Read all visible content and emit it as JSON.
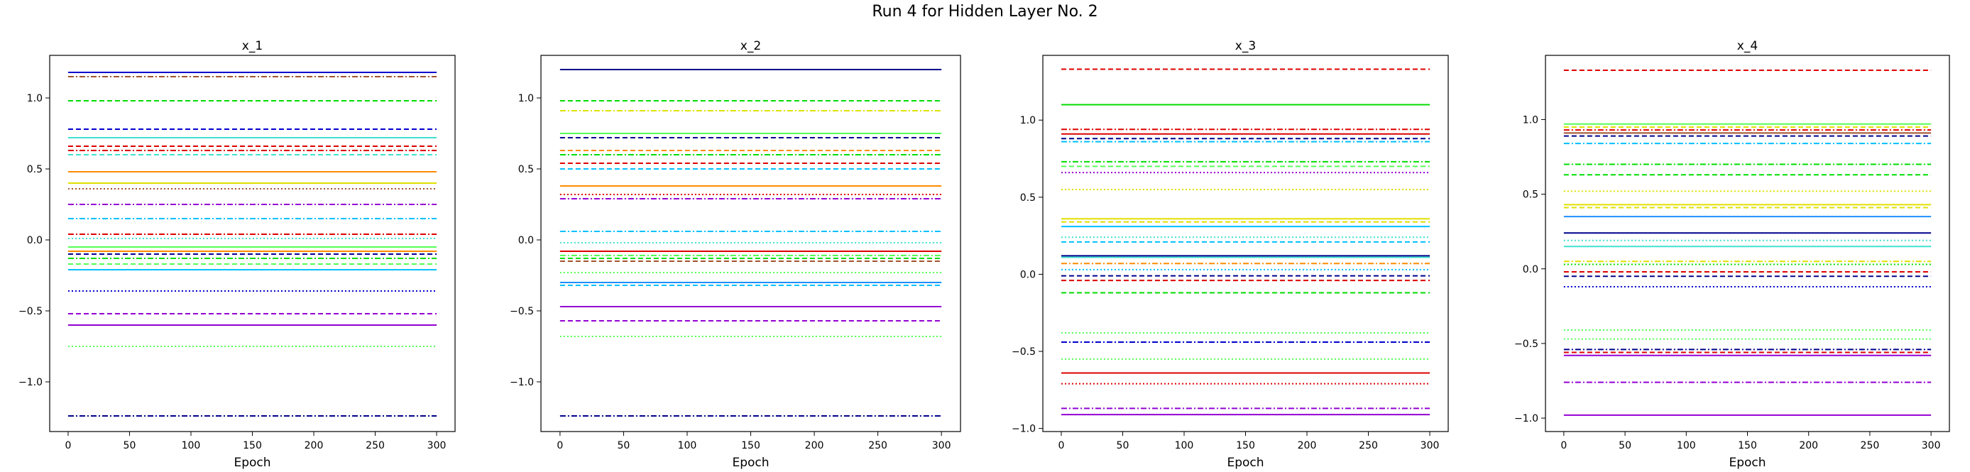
{
  "figure": {
    "title": "Run 4 for Hidden Layer No. 2"
  },
  "palette": {
    "blue": "#0000cd",
    "navy": "#00008b",
    "orange": "#ff8c00",
    "green": "#00dd00",
    "lime": "#55ff55",
    "yellow": "#e0e000",
    "cyan": "#00bfff",
    "turquoise": "#40e0d0",
    "red": "#dd0000",
    "purple": "#9400d3",
    "brown": "#a0522d",
    "dodger": "#1e90ff"
  },
  "chart_data": [
    {
      "type": "line",
      "title": "x_1",
      "xlabel": "Epoch",
      "ylabel": "",
      "xlim": [
        -15,
        315
      ],
      "ylim": [
        -1.35,
        1.3
      ],
      "xticks": [
        0,
        50,
        100,
        150,
        200,
        250,
        300
      ],
      "yticks": [
        -1.0,
        -0.5,
        0.0,
        0.5,
        1.0
      ],
      "ytick_labels": [
        "−1.0",
        "−0.5",
        "0.0",
        "0.5",
        "1.0"
      ],
      "x_range": [
        0,
        300
      ],
      "series": [
        {
          "y": 1.18,
          "color": "blue",
          "style": "solid"
        },
        {
          "y": 1.15,
          "color": "brown",
          "style": "dashdot"
        },
        {
          "y": 0.98,
          "color": "green",
          "style": "dashed"
        },
        {
          "y": 0.78,
          "color": "blue",
          "style": "dashed"
        },
        {
          "y": 0.72,
          "color": "turquoise",
          "style": "solid"
        },
        {
          "y": 0.66,
          "color": "red",
          "style": "dashed"
        },
        {
          "y": 0.63,
          "color": "red",
          "style": "dashdot"
        },
        {
          "y": 0.6,
          "color": "turquoise",
          "style": "dashed"
        },
        {
          "y": 0.48,
          "color": "orange",
          "style": "solid"
        },
        {
          "y": 0.4,
          "color": "yellow",
          "style": "solid"
        },
        {
          "y": 0.36,
          "color": "brown",
          "style": "dotted"
        },
        {
          "y": 0.25,
          "color": "purple",
          "style": "dashdot"
        },
        {
          "y": 0.15,
          "color": "cyan",
          "style": "dashdot"
        },
        {
          "y": 0.04,
          "color": "red",
          "style": "dashdot"
        },
        {
          "y": 0.01,
          "color": "turquoise",
          "style": "dotted"
        },
        {
          "y": -0.05,
          "color": "lime",
          "style": "solid"
        },
        {
          "y": -0.08,
          "color": "orange",
          "style": "solid"
        },
        {
          "y": -0.1,
          "color": "navy",
          "style": "dashed"
        },
        {
          "y": -0.13,
          "color": "green",
          "style": "dashdot"
        },
        {
          "y": -0.17,
          "color": "lime",
          "style": "dashed"
        },
        {
          "y": -0.21,
          "color": "cyan",
          "style": "solid"
        },
        {
          "y": -0.36,
          "color": "blue",
          "style": "dotted"
        },
        {
          "y": -0.52,
          "color": "purple",
          "style": "dashed"
        },
        {
          "y": -0.6,
          "color": "purple",
          "style": "solid"
        },
        {
          "y": -0.75,
          "color": "lime",
          "style": "dotted"
        },
        {
          "y": -1.24,
          "color": "navy",
          "style": "dashdot"
        }
      ]
    },
    {
      "type": "line",
      "title": "x_2",
      "xlabel": "Epoch",
      "ylabel": "",
      "xlim": [
        -15,
        315
      ],
      "ylim": [
        -1.35,
        1.3
      ],
      "xticks": [
        0,
        50,
        100,
        150,
        200,
        250,
        300
      ],
      "yticks": [
        -1.0,
        -0.5,
        0.0,
        0.5,
        1.0
      ],
      "ytick_labels": [
        "−1.0",
        "−0.5",
        "0.0",
        "0.5",
        "1.0"
      ],
      "x_range": [
        0,
        300
      ],
      "series": [
        {
          "y": 1.2,
          "color": "navy",
          "style": "solid"
        },
        {
          "y": 0.98,
          "color": "green",
          "style": "dashed"
        },
        {
          "y": 0.91,
          "color": "yellow",
          "style": "dashdot"
        },
        {
          "y": 0.75,
          "color": "lime",
          "style": "solid"
        },
        {
          "y": 0.72,
          "color": "navy",
          "style": "dashed"
        },
        {
          "y": 0.63,
          "color": "orange",
          "style": "dashed"
        },
        {
          "y": 0.6,
          "color": "green",
          "style": "dashdot"
        },
        {
          "y": 0.54,
          "color": "red",
          "style": "dashed"
        },
        {
          "y": 0.5,
          "color": "cyan",
          "style": "dashed"
        },
        {
          "y": 0.38,
          "color": "orange",
          "style": "solid"
        },
        {
          "y": 0.32,
          "color": "red",
          "style": "dotted"
        },
        {
          "y": 0.29,
          "color": "purple",
          "style": "dashdot"
        },
        {
          "y": 0.06,
          "color": "cyan",
          "style": "dashdot"
        },
        {
          "y": -0.02,
          "color": "turquoise",
          "style": "dotted"
        },
        {
          "y": -0.08,
          "color": "red",
          "style": "solid"
        },
        {
          "y": -0.11,
          "color": "lime",
          "style": "dashdot"
        },
        {
          "y": -0.13,
          "color": "green",
          "style": "dashed"
        },
        {
          "y": -0.15,
          "color": "brown",
          "style": "dashed"
        },
        {
          "y": -0.23,
          "color": "lime",
          "style": "dotted"
        },
        {
          "y": -0.3,
          "color": "dodger",
          "style": "solid"
        },
        {
          "y": -0.32,
          "color": "cyan",
          "style": "dashed"
        },
        {
          "y": -0.47,
          "color": "purple",
          "style": "solid"
        },
        {
          "y": -0.57,
          "color": "purple",
          "style": "dashed"
        },
        {
          "y": -0.68,
          "color": "lime",
          "style": "dotted"
        },
        {
          "y": -1.24,
          "color": "navy",
          "style": "dashdot"
        }
      ]
    },
    {
      "type": "line",
      "title": "x_3",
      "xlabel": "Epoch",
      "ylabel": "",
      "xlim": [
        -15,
        315
      ],
      "ylim": [
        -1.02,
        1.42
      ],
      "xticks": [
        0,
        50,
        100,
        150,
        200,
        250,
        300
      ],
      "yticks": [
        -1.0,
        -0.5,
        0.0,
        0.5,
        1.0
      ],
      "ytick_labels": [
        "−1.0",
        "−0.5",
        "0.0",
        "0.5",
        "1.0"
      ],
      "x_range": [
        0,
        300
      ],
      "series": [
        {
          "y": 1.33,
          "color": "red",
          "style": "dashed"
        },
        {
          "y": 1.1,
          "color": "green",
          "style": "solid"
        },
        {
          "y": 0.94,
          "color": "red",
          "style": "dashdot"
        },
        {
          "y": 0.91,
          "color": "red",
          "style": "solid"
        },
        {
          "y": 0.88,
          "color": "navy",
          "style": "dashed"
        },
        {
          "y": 0.86,
          "color": "cyan",
          "style": "dashdot"
        },
        {
          "y": 0.73,
          "color": "green",
          "style": "dashdot"
        },
        {
          "y": 0.7,
          "color": "lime",
          "style": "dashed"
        },
        {
          "y": 0.66,
          "color": "purple",
          "style": "dotted"
        },
        {
          "y": 0.55,
          "color": "yellow",
          "style": "dotted"
        },
        {
          "y": 0.36,
          "color": "yellow",
          "style": "solid"
        },
        {
          "y": 0.34,
          "color": "yellow",
          "style": "dashed"
        },
        {
          "y": 0.31,
          "color": "cyan",
          "style": "solid"
        },
        {
          "y": 0.24,
          "color": "turquoise",
          "style": "dotted"
        },
        {
          "y": 0.21,
          "color": "cyan",
          "style": "dashed"
        },
        {
          "y": 0.12,
          "color": "navy",
          "style": "solid"
        },
        {
          "y": 0.11,
          "color": "turquoise",
          "style": "solid"
        },
        {
          "y": 0.07,
          "color": "orange",
          "style": "dashdot"
        },
        {
          "y": 0.03,
          "color": "cyan",
          "style": "dotted"
        },
        {
          "y": -0.01,
          "color": "navy",
          "style": "dashed"
        },
        {
          "y": -0.04,
          "color": "red",
          "style": "dashed"
        },
        {
          "y": -0.12,
          "color": "green",
          "style": "dashed"
        },
        {
          "y": -0.38,
          "color": "lime",
          "style": "dotted"
        },
        {
          "y": -0.44,
          "color": "blue",
          "style": "dashdot"
        },
        {
          "y": -0.55,
          "color": "lime",
          "style": "dotted"
        },
        {
          "y": -0.64,
          "color": "red",
          "style": "solid"
        },
        {
          "y": -0.71,
          "color": "red",
          "style": "dotted"
        },
        {
          "y": -0.87,
          "color": "purple",
          "style": "dashdot"
        },
        {
          "y": -0.91,
          "color": "purple",
          "style": "solid"
        }
      ]
    },
    {
      "type": "line",
      "title": "x_4",
      "xlabel": "Epoch",
      "ylabel": "",
      "xlim": [
        -15,
        315
      ],
      "ylim": [
        -1.09,
        1.43
      ],
      "xticks": [
        0,
        50,
        100,
        150,
        200,
        250,
        300
      ],
      "yticks": [
        -1.0,
        -0.5,
        0.0,
        0.5,
        1.0
      ],
      "ytick_labels": [
        "−1.0",
        "−0.5",
        "0.0",
        "0.5",
        "1.0"
      ],
      "x_range": [
        0,
        300
      ],
      "series": [
        {
          "y": 1.33,
          "color": "red",
          "style": "dashed"
        },
        {
          "y": 0.97,
          "color": "lime",
          "style": "solid"
        },
        {
          "y": 0.95,
          "color": "yellow",
          "style": "dashed"
        },
        {
          "y": 0.93,
          "color": "red",
          "style": "dashdot"
        },
        {
          "y": 0.91,
          "color": "brown",
          "style": "solid"
        },
        {
          "y": 0.89,
          "color": "navy",
          "style": "dashed"
        },
        {
          "y": 0.84,
          "color": "cyan",
          "style": "dashdot"
        },
        {
          "y": 0.7,
          "color": "green",
          "style": "dashdot"
        },
        {
          "y": 0.63,
          "color": "green",
          "style": "dashed"
        },
        {
          "y": 0.52,
          "color": "yellow",
          "style": "dotted"
        },
        {
          "y": 0.43,
          "color": "yellow",
          "style": "solid"
        },
        {
          "y": 0.41,
          "color": "yellow",
          "style": "dashed"
        },
        {
          "y": 0.35,
          "color": "dodger",
          "style": "solid"
        },
        {
          "y": 0.24,
          "color": "navy",
          "style": "solid"
        },
        {
          "y": 0.19,
          "color": "turquoise",
          "style": "dotted"
        },
        {
          "y": 0.15,
          "color": "turquoise",
          "style": "solid"
        },
        {
          "y": 0.05,
          "color": "yellow",
          "style": "dashdot"
        },
        {
          "y": 0.03,
          "color": "green",
          "style": "dotted"
        },
        {
          "y": -0.02,
          "color": "red",
          "style": "dashed"
        },
        {
          "y": -0.05,
          "color": "navy",
          "style": "dashed"
        },
        {
          "y": -0.12,
          "color": "blue",
          "style": "dotted"
        },
        {
          "y": -0.41,
          "color": "lime",
          "style": "dotted"
        },
        {
          "y": -0.47,
          "color": "lime",
          "style": "dotted"
        },
        {
          "y": -0.54,
          "color": "navy",
          "style": "dashdot"
        },
        {
          "y": -0.56,
          "color": "red",
          "style": "dashed"
        },
        {
          "y": -0.58,
          "color": "purple",
          "style": "solid"
        },
        {
          "y": -0.76,
          "color": "purple",
          "style": "dashdot"
        },
        {
          "y": -0.98,
          "color": "purple",
          "style": "solid"
        }
      ]
    }
  ]
}
